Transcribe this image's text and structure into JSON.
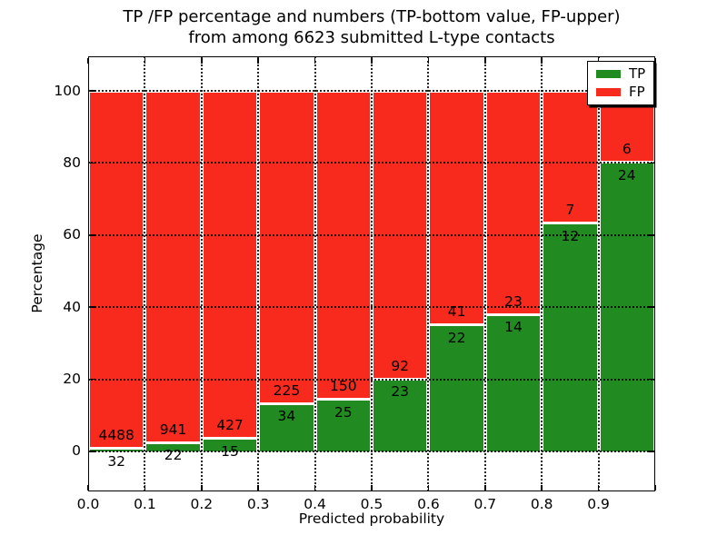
{
  "title": {
    "line1": "TP /FP percentage and numbers (TP-bottom value, FP-upper)",
    "line2": "from among 6623 submitted L-type contacts"
  },
  "chart_data": {
    "type": "bar",
    "stacked": true,
    "title": "TP /FP percentage and numbers (TP-bottom value, FP-upper)\nfrom among 6623 submitted L-type contacts",
    "xlabel": "Predicted probability",
    "ylabel": "Percentage",
    "total_submitted": 6623,
    "bin_edges": [
      0.0,
      0.1,
      0.2,
      0.3,
      0.4,
      0.5,
      0.6,
      0.7,
      0.8,
      0.9,
      1.0
    ],
    "series": [
      {
        "name": "TP",
        "color": "#218a21",
        "counts": [
          32,
          22,
          15,
          34,
          25,
          23,
          22,
          14,
          12,
          24
        ],
        "percentages": [
          0.71,
          2.28,
          3.39,
          13.13,
          14.29,
          20.0,
          34.92,
          37.84,
          63.16,
          80.0
        ]
      },
      {
        "name": "FP",
        "color": "#f82a1e",
        "counts": [
          4488,
          941,
          427,
          225,
          150,
          92,
          41,
          23,
          7,
          6
        ],
        "percentages": [
          99.29,
          97.72,
          96.61,
          86.87,
          85.71,
          80.0,
          65.08,
          62.16,
          36.84,
          20.0
        ]
      }
    ],
    "xticks": [
      "0.0",
      "0.1",
      "0.2",
      "0.3",
      "0.4",
      "0.5",
      "0.6",
      "0.7",
      "0.8",
      "0.9"
    ],
    "yticks": [
      0,
      20,
      40,
      60,
      80,
      100
    ],
    "xlim": [
      0.0,
      1.0
    ],
    "ylim": [
      -11.1,
      109.6
    ],
    "grid": "dotted",
    "bar_edge_color": "#ffffff",
    "legend": {
      "position": "upper right",
      "entries": [
        {
          "label": "TP",
          "color": "#218a21"
        },
        {
          "label": "FP",
          "color": "#f82a1e"
        }
      ]
    }
  }
}
